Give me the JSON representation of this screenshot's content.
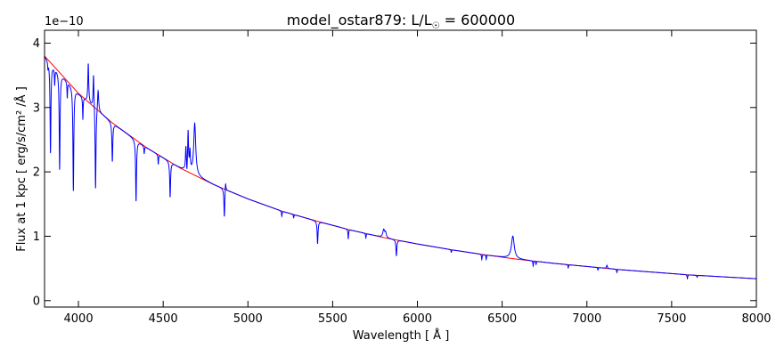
{
  "chart_data": {
    "type": "line",
    "title": {
      "prefix": "model_ostar879: L/L",
      "sub": "☉",
      "suffix": " = 600000"
    },
    "xlabel": "Wavelength [ Å ]",
    "ylabel": "Flux at 1 kpc [ erg/s/cm² /Å ]",
    "y_offset_label": "1e−10",
    "xlim": [
      3800,
      8000
    ],
    "ylim": [
      -0.1,
      4.2
    ],
    "x_ticks": [
      4000,
      4500,
      5000,
      5500,
      6000,
      6500,
      7000,
      7500,
      8000
    ],
    "y_ticks": [
      0,
      1,
      2,
      3,
      4
    ],
    "grid": false,
    "legend": "none",
    "colors": {
      "model": "#0000ff",
      "continuum": "#ff0000",
      "axes": "#000000"
    },
    "continuum": {
      "x": [
        3800,
        4000,
        4200,
        4400,
        4600,
        4800,
        5000,
        5200,
        5400,
        5600,
        5800,
        6000,
        6200,
        6400,
        6600,
        6800,
        7000,
        7200,
        7400,
        7600,
        7800,
        8000
      ],
      "y": [
        3.8,
        3.22,
        2.76,
        2.38,
        2.06,
        1.8,
        1.58,
        1.39,
        1.24,
        1.1,
        0.98,
        0.88,
        0.79,
        0.71,
        0.64,
        0.58,
        0.53,
        0.48,
        0.44,
        0.4,
        0.37,
        0.34
      ]
    },
    "lines": [
      {
        "x": 3820,
        "depth": -0.1,
        "w": 2
      },
      {
        "x": 3835,
        "depth": -1.4,
        "w": 3
      },
      {
        "x": 3860,
        "depth": -0.25,
        "w": 2
      },
      {
        "x": 3889,
        "depth": -1.5,
        "w": 3
      },
      {
        "x": 3934,
        "depth": -0.25,
        "w": 2
      },
      {
        "x": 3970,
        "depth": -1.6,
        "w": 3
      },
      {
        "x": 4026,
        "depth": -0.35,
        "w": 2
      },
      {
        "x": 4058,
        "depth": 0.6,
        "w": 3
      },
      {
        "x": 4089,
        "depth": 0.55,
        "w": 3
      },
      {
        "x": 4101,
        "depth": -1.3,
        "w": 3
      },
      {
        "x": 4116,
        "depth": 0.35,
        "w": 4
      },
      {
        "x": 4200,
        "depth": -0.6,
        "w": 3
      },
      {
        "x": 4340,
        "depth": -0.95,
        "w": 3
      },
      {
        "x": 4388,
        "depth": -0.12,
        "w": 2
      },
      {
        "x": 4471,
        "depth": -0.15,
        "w": 2
      },
      {
        "x": 4541,
        "depth": -0.55,
        "w": 3
      },
      {
        "x": 4634,
        "depth": 0.35,
        "w": 3
      },
      {
        "x": 4640,
        "depth": -0.15,
        "w": 2
      },
      {
        "x": 4647,
        "depth": 0.6,
        "w": 3
      },
      {
        "x": 4658,
        "depth": 0.3,
        "w": 3
      },
      {
        "x": 4686,
        "depth": 0.8,
        "w": 7
      },
      {
        "x": 4861,
        "depth": -0.45,
        "w": 3
      },
      {
        "x": 4868,
        "depth": 0.15,
        "w": 3
      },
      {
        "x": 5200,
        "depth": -0.08,
        "w": 2
      },
      {
        "x": 5270,
        "depth": -0.05,
        "w": 2
      },
      {
        "x": 5411,
        "depth": -0.35,
        "w": 3
      },
      {
        "x": 5592,
        "depth": -0.15,
        "w": 2
      },
      {
        "x": 5696,
        "depth": -0.07,
        "w": 2
      },
      {
        "x": 5801,
        "depth": 0.12,
        "w": 6
      },
      {
        "x": 5812,
        "depth": 0.08,
        "w": 5
      },
      {
        "x": 5876,
        "depth": -0.25,
        "w": 3
      },
      {
        "x": 6200,
        "depth": -0.04,
        "w": 2
      },
      {
        "x": 6380,
        "depth": -0.08,
        "w": 2
      },
      {
        "x": 6406,
        "depth": -0.07,
        "w": 2
      },
      {
        "x": 6563,
        "depth": 0.35,
        "w": 10
      },
      {
        "x": 6683,
        "depth": -0.08,
        "w": 2
      },
      {
        "x": 6700,
        "depth": -0.05,
        "w": 2
      },
      {
        "x": 6890,
        "depth": -0.05,
        "w": 2
      },
      {
        "x": 7065,
        "depth": -0.04,
        "w": 2
      },
      {
        "x": 7118,
        "depth": 0.05,
        "w": 3
      },
      {
        "x": 7177,
        "depth": -0.05,
        "w": 2
      },
      {
        "x": 7593,
        "depth": -0.06,
        "w": 2
      },
      {
        "x": 7650,
        "depth": -0.03,
        "w": 2
      }
    ]
  }
}
